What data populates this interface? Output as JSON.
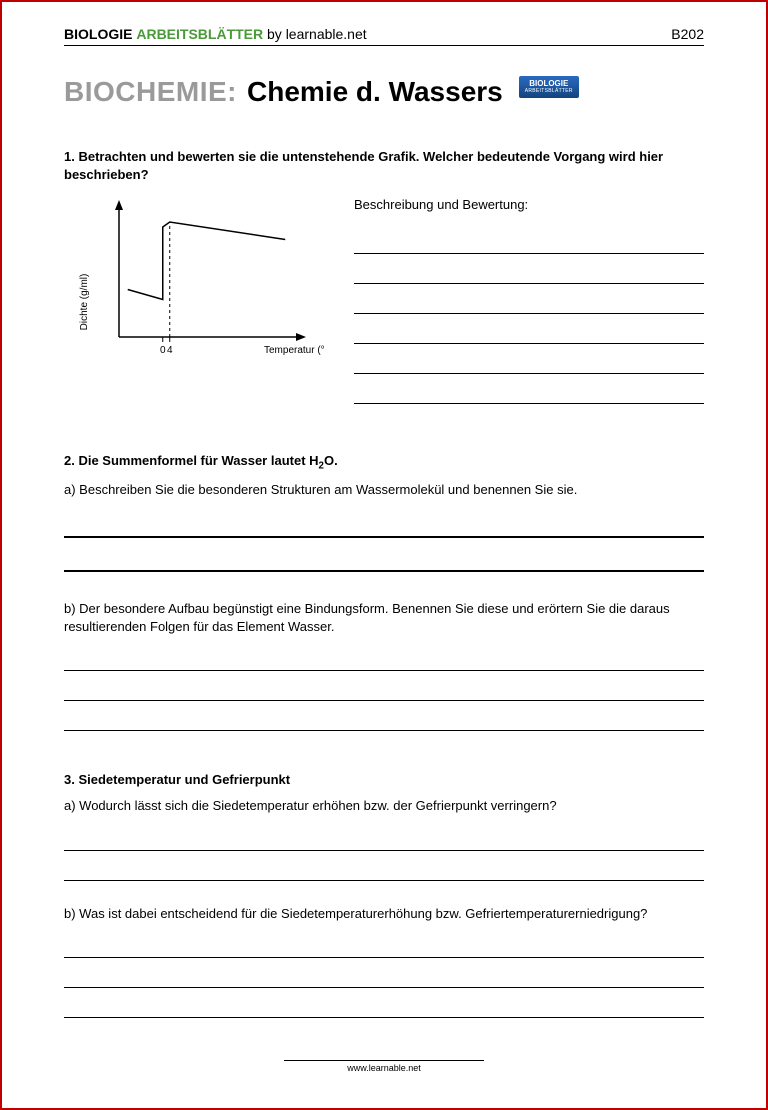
{
  "header": {
    "brand_bold": "BIOLOGIE",
    "brand_green": "ARBEITSBLÄTTER",
    "by": "by learnable.net",
    "code": "B202"
  },
  "title": {
    "grey": "BIOCHEMIE:",
    "black": "Chemie d. Wassers",
    "badge_top": "BIOLOGIE",
    "badge_sub": "ARBEITSBLÄTTER"
  },
  "q1": {
    "heading": "1. Betrachten und bewerten sie die untenstehende Grafik. Welcher bedeutende Vorgang wird hier beschrieben?",
    "desc_label": "Beschreibung und Bewertung:",
    "chart": {
      "type": "line",
      "y_label": "Dichte (g/ml)",
      "x_label": "Temperatur  (°C)",
      "x_ticks": [
        "0",
        "4"
      ],
      "background_color": "#ffffff",
      "axis_color": "#000000",
      "line_color": "#000000",
      "axis_width": 1.5,
      "line_width": 1.5,
      "dashed_at_x": 4,
      "points": [
        {
          "x": -20,
          "y": 38
        },
        {
          "x": 0,
          "y": 30
        },
        {
          "x": 0,
          "y": 88
        },
        {
          "x": 4,
          "y": 92
        },
        {
          "x": 70,
          "y": 78
        }
      ],
      "xlim": [
        -25,
        75
      ],
      "ylim": [
        0,
        100
      ]
    },
    "answer_line_count": 6
  },
  "q2": {
    "heading_prefix": "2. Die Summenformel für Wasser lautet H",
    "heading_sub": "2",
    "heading_suffix": "O.",
    "a": "a) Beschreiben Sie die besonderen Strukturen am Wassermolekül und benennen Sie sie.",
    "a_line_count": 2,
    "b": "b) Der besondere Aufbau begünstigt eine Bindungsform. Benennen Sie diese und erörtern Sie die daraus resultierenden Folgen für das Element Wasser.",
    "b_line_count": 3
  },
  "q3": {
    "heading": "3. Siedetemperatur und Gefrierpunkt",
    "a": "a) Wodurch lässt sich die Siedetemperatur erhöhen bzw. der Gefrierpunkt verringern?",
    "a_line_count": 2,
    "b": "b) Was ist dabei entscheidend für die Siedetemperaturerhöhung bzw. Gefriertemperaturerniedrigung?",
    "b_line_count": 3
  },
  "footer": "www.learnable.net"
}
